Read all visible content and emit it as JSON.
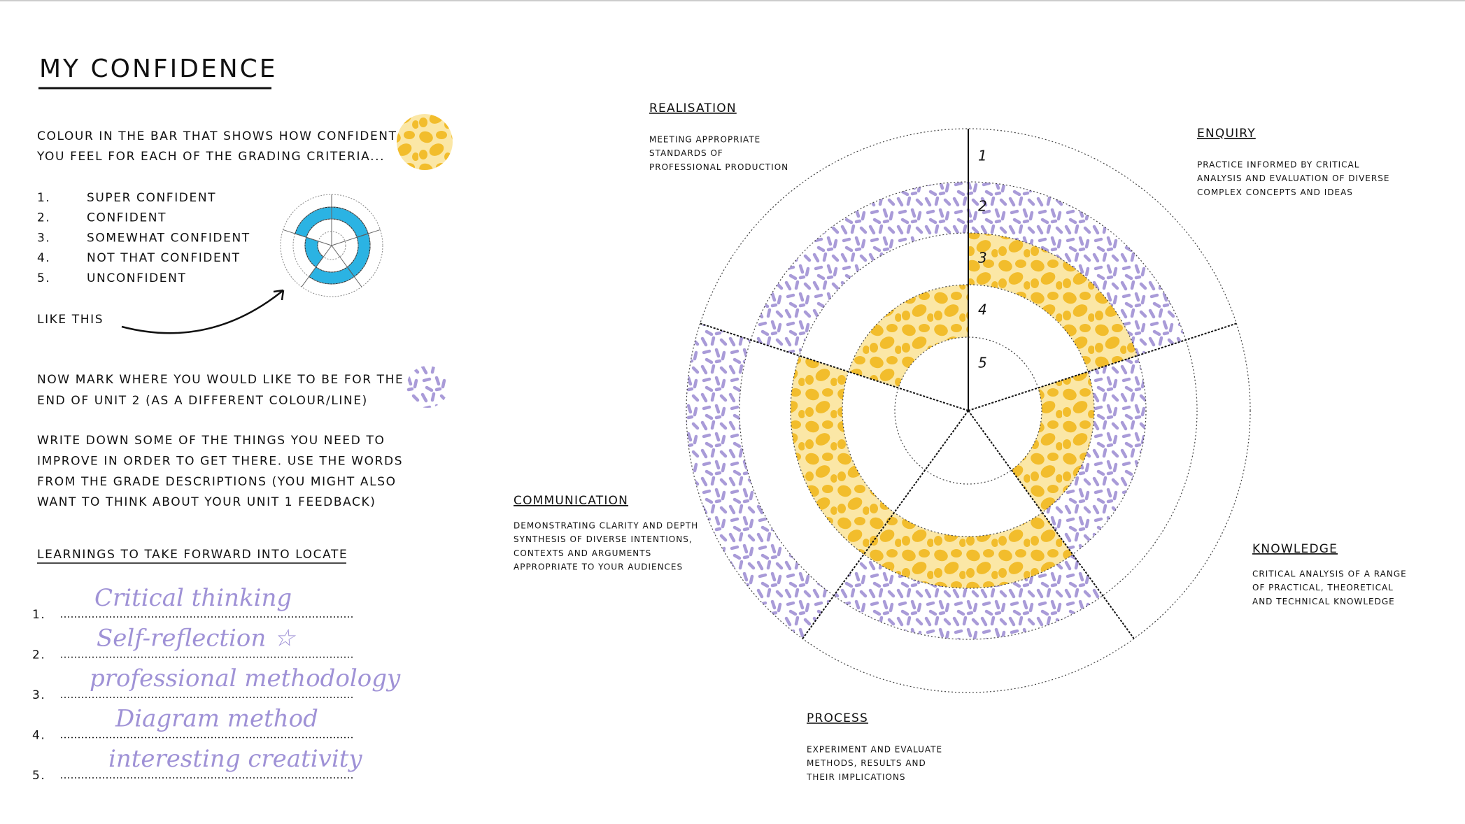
{
  "header": {
    "title": "MY CONFIDENCE"
  },
  "instructions": {
    "colour_in": [
      "COLOUR IN THE BAR THAT SHOWS HOW CONFIDENT",
      "YOU FEEL FOR EACH OF THE GRADING CRITERIA..."
    ],
    "scale": [
      {
        "number": "1.",
        "label": "SUPER CONFIDENT"
      },
      {
        "number": "2.",
        "label": "CONFIDENT"
      },
      {
        "number": "3.",
        "label": "SOMEWHAT CONFIDENT"
      },
      {
        "number": "4.",
        "label": "NOT THAT CONFIDENT"
      },
      {
        "number": "5.",
        "label": "UNCONFIDENT"
      }
    ],
    "example_label": "LIKE THIS",
    "mark_target": [
      "NOW MARK WHERE YOU WOULD LIKE TO BE FOR THE",
      "END OF UNIT 2 (AS A DIFFERENT COLOUR/LINE)"
    ],
    "write_down": [
      "WRITE DOWN SOME OF THE THINGS YOU NEED TO",
      "IMPROVE IN ORDER TO GET THERE. USE THE WORDS",
      "FROM THE GRADE DESCRIPTIONS (YOU MIGHT ALSO",
      "WANT TO THINK ABOUT YOUR UNIT 1 FEEDBACK)"
    ]
  },
  "learnings": {
    "title": "LEARNINGS TO TAKE FORWARD INTO LOCATE",
    "items": [
      {
        "number": "1.",
        "text": "Critical thinking"
      },
      {
        "number": "2.",
        "text": "Self-reflection ☆"
      },
      {
        "number": "3.",
        "text": "professional methodology"
      },
      {
        "number": "4.",
        "text": "Diagram method"
      },
      {
        "number": "5.",
        "text": "interesting creativity"
      }
    ]
  },
  "wheel": {
    "ring_labels": [
      "1",
      "2",
      "3",
      "4",
      "5"
    ],
    "criteria": [
      {
        "title": "REALISATION",
        "description": [
          "MEETING APPROPRIATE",
          "STANDARDS OF",
          "PROFESSIONAL PRODUCTION"
        ]
      },
      {
        "title": "ENQUIRY",
        "description": [
          "PRACTICE INFORMED BY CRITICAL",
          "ANALYSIS AND EVALUATION OF DIVERSE",
          "COMPLEX CONCEPTS AND IDEAS"
        ]
      },
      {
        "title": "KNOWLEDGE",
        "description": [
          "CRITICAL ANALYSIS OF A RANGE",
          "OF PRACTICAL, THEORETICAL",
          "AND TECHNICAL KNOWLEDGE"
        ]
      },
      {
        "title": "PROCESS",
        "description": [
          "EXPERIMENT AND EVALUATE",
          "METHODS, RESULTS AND",
          "THEIR IMPLICATIONS"
        ]
      },
      {
        "title": "COMMUNICATION",
        "description": [
          "DEMONSTRATING CLARITY AND DEPTH",
          "SYNTHESIS OF DIVERSE INTENTIONS,",
          "CONTEXTS AND ARGUMENTS",
          "APPROPRIATE TO YOUR AUDIENCES"
        ]
      }
    ]
  }
}
